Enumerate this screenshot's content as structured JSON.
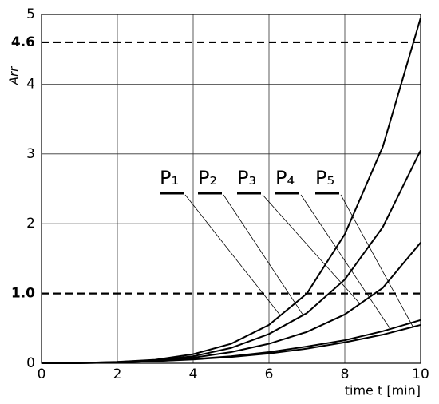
{
  "chart_data": {
    "type": "line",
    "x_label": "time t [min]",
    "y_label": "Arr",
    "x": [
      0,
      1,
      2,
      3,
      4,
      5,
      6,
      7,
      8,
      9,
      10
    ],
    "series": [
      {
        "name": "P₁",
        "color": "#000000",
        "values": [
          0,
          0.005,
          0.02,
          0.05,
          0.13,
          0.28,
          0.55,
          1.0,
          1.85,
          3.1,
          4.95
        ]
      },
      {
        "name": "P₂",
        "color": "#000000",
        "values": [
          0,
          0.004,
          0.018,
          0.045,
          0.1,
          0.22,
          0.42,
          0.72,
          1.2,
          1.95,
          3.05
        ]
      },
      {
        "name": "P₃",
        "color": "#000000",
        "values": [
          0,
          0.003,
          0.015,
          0.04,
          0.08,
          0.16,
          0.28,
          0.45,
          0.7,
          1.08,
          1.73
        ]
      },
      {
        "name": "P₄",
        "color": "#000000",
        "values": [
          0,
          0.002,
          0.01,
          0.03,
          0.06,
          0.1,
          0.16,
          0.24,
          0.33,
          0.46,
          0.62
        ]
      },
      {
        "name": "P₅",
        "color": "#000000",
        "values": [
          0,
          0.002,
          0.01,
          0.03,
          0.055,
          0.09,
          0.14,
          0.21,
          0.3,
          0.41,
          0.55
        ]
      }
    ],
    "xlim": [
      0,
      10
    ],
    "xticks": [
      0,
      2,
      4,
      6,
      8,
      10
    ],
    "ylim": [
      0,
      5
    ],
    "yticks": [
      0,
      2,
      3,
      4,
      5
    ],
    "reference_lines": [
      {
        "value": 4.6,
        "label": "4.6"
      },
      {
        "value": 1,
        "label": "1.0"
      }
    ],
    "grid": true
  }
}
